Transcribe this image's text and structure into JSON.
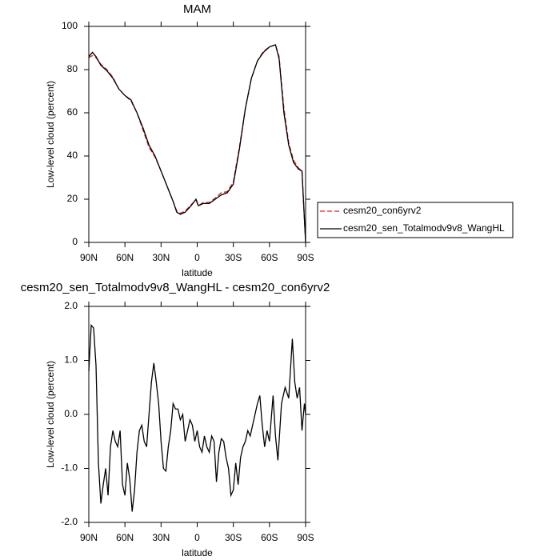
{
  "chart_data": [
    {
      "type": "line",
      "title": "MAM",
      "xlabel": "latitude",
      "ylabel": "Low-level cloud (percent)",
      "x": [
        90,
        87,
        84,
        80,
        75,
        70,
        65,
        60,
        55,
        50,
        45,
        40,
        35,
        30,
        25,
        20,
        17,
        14,
        10,
        5,
        1,
        -1,
        -5,
        -10,
        -15,
        -20,
        -25,
        -30,
        -35,
        -40,
        -45,
        -50,
        -55,
        -60,
        -65,
        -68,
        -72,
        -76,
        -80,
        -84,
        -87,
        -90
      ],
      "series": [
        {
          "name": "cesm20_con6yrv2",
          "color": "#e02020",
          "dashed": true,
          "values": [
            85.5,
            86.5,
            85.5,
            82.5,
            80,
            76.5,
            71,
            68,
            65.5,
            60,
            52,
            44,
            39.5,
            33,
            26,
            19,
            14.5,
            13.5,
            14.5,
            17.5,
            19.5,
            17,
            18.5,
            18.5,
            20.5,
            23,
            23.5,
            28,
            44,
            62,
            76,
            84,
            88.5,
            90.5,
            91.5,
            86,
            62,
            46,
            38,
            34.5,
            33,
            0
          ]
        },
        {
          "name": "cesm20_sen_Totalmodv9v8_WangHL",
          "color": "#000000",
          "dashed": false,
          "values": [
            86,
            88,
            86,
            82,
            79.5,
            76,
            71,
            68,
            66,
            60,
            53,
            45,
            40,
            33,
            26,
            19,
            14,
            13,
            14,
            17,
            20,
            17,
            18,
            18,
            20,
            22,
            23,
            27,
            43,
            62,
            76,
            84,
            88,
            90.5,
            91.5,
            85,
            60,
            45,
            37,
            34,
            33,
            0
          ]
        }
      ],
      "xlim": [
        90,
        -90
      ],
      "ylim": [
        0,
        100
      ],
      "xticks": [
        {
          "value": 90,
          "label": "90N"
        },
        {
          "value": 60,
          "label": "60N"
        },
        {
          "value": 30,
          "label": "30N"
        },
        0,
        {
          "value": -30,
          "label": "30S"
        },
        {
          "value": -60,
          "label": "60S"
        },
        {
          "value": -90,
          "label": "90S"
        }
      ],
      "yticks": [
        0,
        20,
        40,
        60,
        80,
        100
      ],
      "legend": "right"
    },
    {
      "type": "line",
      "title": "cesm20_sen_Totalmodv9v8_WangHL - cesm20_con6yrv2",
      "xlabel": "latitude",
      "ylabel": "Low-level cloud (percent)",
      "x": [
        90,
        88,
        86,
        84,
        82,
        80,
        78,
        76,
        74,
        72,
        70,
        68,
        66,
        64,
        62,
        60,
        58,
        56,
        54,
        52,
        50,
        48,
        46,
        44,
        42,
        40,
        38,
        36,
        34,
        32,
        30,
        28,
        26,
        24,
        22,
        20,
        18,
        16,
        14,
        12,
        10,
        8,
        6,
        4,
        2,
        0,
        -2,
        -4,
        -6,
        -8,
        -10,
        -12,
        -14,
        -16,
        -18,
        -20,
        -22,
        -24,
        -26,
        -28,
        -30,
        -32,
        -34,
        -36,
        -38,
        -40,
        -42,
        -44,
        -46,
        -48,
        -50,
        -52,
        -54,
        -56,
        -58,
        -60,
        -63,
        -65,
        -67,
        -70,
        -73,
        -76,
        -79,
        -81,
        -83,
        -85,
        -87,
        -89,
        -90
      ],
      "series": [
        {
          "color": "#000000",
          "values": [
            0.8,
            1.65,
            1.6,
            0.9,
            -0.9,
            -1.65,
            -1.3,
            -1.0,
            -1.5,
            -0.6,
            -0.3,
            -0.5,
            -0.6,
            -0.3,
            -1.3,
            -1.5,
            -0.9,
            -1.2,
            -1.8,
            -1.4,
            -0.7,
            -0.3,
            -0.2,
            -0.5,
            -0.6,
            0.0,
            0.6,
            0.95,
            0.6,
            0.2,
            -0.5,
            -1.0,
            -1.05,
            -0.6,
            -0.3,
            0.2,
            0.1,
            0.1,
            -0.1,
            0.0,
            -0.5,
            -0.3,
            -0.1,
            -0.2,
            -0.5,
            -0.3,
            -0.6,
            -0.7,
            -0.4,
            -0.6,
            -0.7,
            -0.4,
            -0.5,
            -1.25,
            -0.7,
            -0.45,
            -0.5,
            -0.8,
            -1.0,
            -1.5,
            -1.4,
            -0.9,
            -1.3,
            -0.8,
            -0.6,
            -0.5,
            -0.3,
            -0.4,
            -0.2,
            0.0,
            0.2,
            0.35,
            -0.2,
            -0.6,
            -0.3,
            -0.5,
            0.35,
            -0.4,
            -0.85,
            0.2,
            0.5,
            0.3,
            1.4,
            0.6,
            0.3,
            0.5,
            -0.3,
            0.2,
            0.0
          ]
        }
      ],
      "xlim": [
        90,
        -90
      ],
      "ylim": [
        -2,
        2
      ],
      "xticks": [
        {
          "value": 90,
          "label": "90N"
        },
        {
          "value": 60,
          "label": "60N"
        },
        {
          "value": 30,
          "label": "30N"
        },
        0,
        {
          "value": -30,
          "label": "30S"
        },
        {
          "value": -60,
          "label": "60S"
        },
        {
          "value": -90,
          "label": "90S"
        }
      ],
      "yticks": [
        {
          "value": -2,
          "label": "-2.0"
        },
        {
          "value": -1,
          "label": "-1.0"
        },
        {
          "value": 0,
          "label": "0.0"
        },
        {
          "value": 1,
          "label": "1.0"
        },
        {
          "value": 2,
          "label": "2.0"
        }
      ]
    }
  ]
}
